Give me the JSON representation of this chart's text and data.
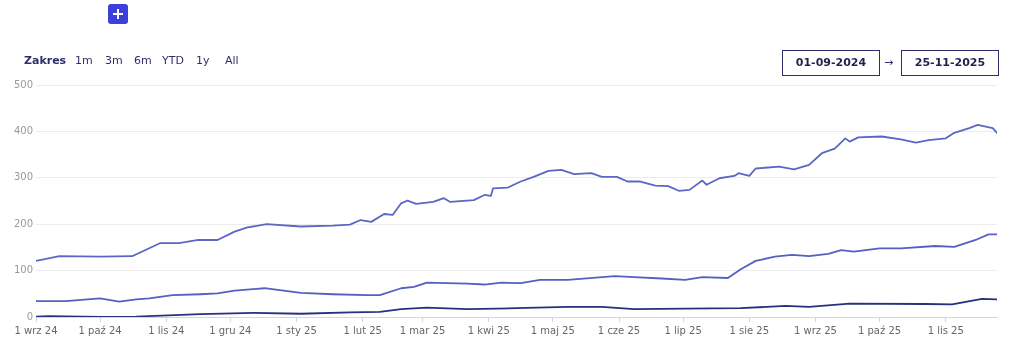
{
  "chart_data": {
    "type": "line",
    "annotations": [
      "Zakres",
      "1m",
      "3m",
      "6m",
      "YTD",
      "1y",
      "All",
      "01-09-2024",
      "→",
      "25-11-2025"
    ],
    "xlim": [
      "2024-09-01",
      "2025-11-25"
    ],
    "xticks": [
      {
        "value": "2024-09-01",
        "label": "1 wrz 24"
      },
      {
        "value": "2024-10-01",
        "label": "1 paź 24"
      },
      {
        "value": "2024-11-01",
        "label": "1 lis 24"
      },
      {
        "value": "2024-12-01",
        "label": "1 gru 24"
      },
      {
        "value": "2025-01-01",
        "label": "1 sty 25"
      },
      {
        "value": "2025-02-01",
        "label": "1 lut 25"
      },
      {
        "value": "2025-03-01",
        "label": "1 mar 25"
      },
      {
        "value": "2025-04-01",
        "label": "1 kwi 25"
      },
      {
        "value": "2025-05-01",
        "label": "1 maj 25"
      },
      {
        "value": "2025-06-01",
        "label": "1 cze 25"
      },
      {
        "value": "2025-07-01",
        "label": "1 lip 25"
      },
      {
        "value": "2025-08-01",
        "label": "1 sie 25"
      },
      {
        "value": "2025-09-01",
        "label": "1 wrz 25"
      },
      {
        "value": "2025-10-01",
        "label": "1 paź 25"
      },
      {
        "value": "2025-11-01",
        "label": "1 lis 25"
      }
    ],
    "ylim": [
      0,
      500
    ],
    "yticks": [
      0,
      100,
      200,
      300,
      400,
      500
    ],
    "grid": "y",
    "legend": false,
    "marker": "none",
    "line_style": "solid",
    "series": [
      {
        "color": "#5a67c4",
        "x": [
          "2024-09-01",
          "2024-09-12",
          "2024-10-01",
          "2024-10-16",
          "2024-10-29",
          "2024-11-07",
          "2024-11-16",
          "2024-11-25",
          "2024-12-03",
          "2024-12-09",
          "2024-12-18",
          "2025-01-03",
          "2025-01-18",
          "2025-01-26",
          "2025-01-31",
          "2025-02-05",
          "2025-02-11",
          "2025-02-15",
          "2025-02-19",
          "2025-02-22",
          "2025-02-26",
          "2025-03-06",
          "2025-03-11",
          "2025-03-14",
          "2025-03-25",
          "2025-03-30",
          "2025-04-02",
          "2025-04-03",
          "2025-04-10",
          "2025-04-16",
          "2025-04-22",
          "2025-04-29",
          "2025-05-05",
          "2025-05-11",
          "2025-05-19",
          "2025-05-24",
          "2025-05-31",
          "2025-06-05",
          "2025-06-11",
          "2025-06-18",
          "2025-06-24",
          "2025-06-29",
          "2025-07-04",
          "2025-07-10",
          "2025-07-12",
          "2025-07-18",
          "2025-07-25",
          "2025-07-27",
          "2025-08-01",
          "2025-08-04",
          "2025-08-15",
          "2025-08-22",
          "2025-08-29",
          "2025-09-04",
          "2025-09-10",
          "2025-09-15",
          "2025-09-17",
          "2025-09-21",
          "2025-10-02",
          "2025-10-11",
          "2025-10-18",
          "2025-10-24",
          "2025-11-01",
          "2025-11-05",
          "2025-11-12",
          "2025-11-16",
          "2025-11-23",
          "2025-11-25"
        ],
        "values": [
          121,
          131,
          130,
          131,
          159,
          159,
          166,
          166,
          184,
          193,
          200,
          195,
          197,
          199,
          209,
          205,
          222,
          220,
          245,
          251,
          244,
          248,
          256,
          248,
          252,
          263,
          261,
          277,
          279,
          292,
          302,
          315,
          317,
          308,
          310,
          302,
          302,
          292,
          292,
          283,
          282,
          272,
          274,
          294,
          285,
          299,
          304,
          310,
          304,
          320,
          324,
          318,
          328,
          353,
          363,
          385,
          378,
          387,
          389,
          383,
          376,
          381,
          385,
          397,
          407,
          414,
          407,
          397
        ]
      },
      {
        "color": "#5461c0",
        "x": [
          "2024-09-01",
          "2024-09-15",
          "2024-10-01",
          "2024-10-10",
          "2024-10-18",
          "2024-10-24",
          "2024-11-04",
          "2024-11-17",
          "2024-11-25",
          "2024-12-03",
          "2024-12-17",
          "2025-01-03",
          "2025-01-18",
          "2025-02-03",
          "2025-02-09",
          "2025-02-19",
          "2025-02-25",
          "2025-03-03",
          "2025-03-22",
          "2025-03-30",
          "2025-04-07",
          "2025-04-16",
          "2025-04-25",
          "2025-05-08",
          "2025-05-30",
          "2025-06-08",
          "2025-06-21",
          "2025-07-02",
          "2025-07-10",
          "2025-07-22",
          "2025-07-28",
          "2025-08-04",
          "2025-08-13",
          "2025-08-21",
          "2025-08-29",
          "2025-09-07",
          "2025-09-13",
          "2025-09-19",
          "2025-10-01",
          "2025-10-11",
          "2025-10-27",
          "2025-11-05",
          "2025-11-15",
          "2025-11-21",
          "2025-11-25"
        ],
        "values": [
          34,
          34,
          40,
          33,
          38,
          40,
          47,
          49,
          51,
          57,
          62,
          52,
          49,
          47,
          47,
          62,
          65,
          74,
          72,
          70,
          74,
          73,
          80,
          80,
          88,
          86,
          83,
          80,
          86,
          84,
          103,
          121,
          130,
          134,
          131,
          136,
          144,
          141,
          148,
          148,
          153,
          151,
          166,
          178,
          178
        ]
      },
      {
        "color": "#28307f",
        "x": [
          "2024-09-01",
          "2024-09-07",
          "2024-10-01",
          "2024-10-18",
          "2024-11-17",
          "2024-12-12",
          "2025-01-03",
          "2025-01-26",
          "2025-02-09",
          "2025-02-19",
          "2025-03-03",
          "2025-03-22",
          "2025-04-14",
          "2025-05-08",
          "2025-05-24",
          "2025-06-08",
          "2025-07-02",
          "2025-07-28",
          "2025-08-18",
          "2025-08-29",
          "2025-09-17",
          "2025-10-22",
          "2025-11-04",
          "2025-11-18",
          "2025-11-25"
        ],
        "values": [
          1,
          2,
          0,
          1,
          6,
          9,
          7,
          10,
          11,
          17,
          20,
          17,
          19,
          22,
          22,
          17,
          18,
          19,
          24,
          22,
          29,
          28,
          27,
          39,
          38
        ]
      }
    ]
  }
}
